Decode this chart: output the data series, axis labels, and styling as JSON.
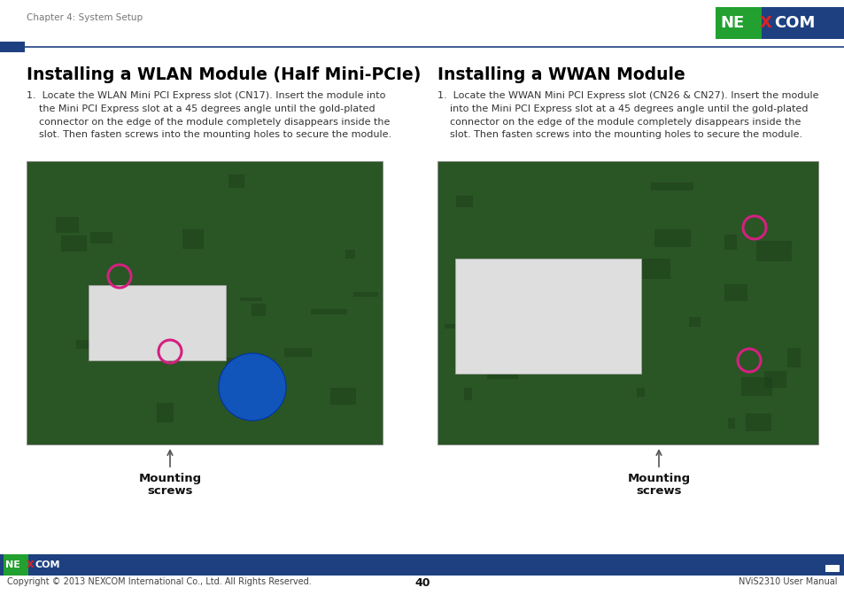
{
  "page_title": "Chapter 4: System Setup",
  "page_number": "40",
  "footer_copyright": "Copyright © 2013 NEXCOM International Co., Ltd. All Rights Reserved.",
  "footer_right": "NViS2310 User Manual",
  "section1_title": "Installing a WLAN Module (Half Mini-PCIe)",
  "section2_title": "Installing a WWAN Module",
  "section1_body": "1.  Locate the WLAN Mini PCI Express slot (CN17). Insert the module into\n    the Mini PCI Express slot at a 45 degrees angle until the gold-plated\n    connector on the edge of the module completely disappears inside the\n    slot. Then fasten screws into the mounting holes to secure the module.",
  "section2_body": "1.  Locate the WWAN Mini PCI Express slot (CN26 & CN27). Insert the module\n    into the Mini PCI Express slot at a 45 degrees angle until the gold-plated\n    connector on the edge of the module completely disappears inside the\n    slot. Then fasten screws into the mounting holes to secure the module.",
  "label1_line1": "Mounting",
  "label1_line2": "screws",
  "label2_line1": "Mounting",
  "label2_line2": "screws",
  "bg_color": "#ffffff",
  "header_line_color": "#1e4080",
  "header_square_color": "#1e4080",
  "footer_bar_color": "#1e4080",
  "nexcom_green": "#22a030",
  "nexcom_blue": "#1e4080",
  "nexcom_x_color": "#dd2222",
  "title_fontsize": 13.5,
  "body_fontsize": 8.0,
  "header_fontsize": 7.5,
  "label_fontsize": 9.5,
  "footer_fontsize": 7.0,
  "page_num_fontsize": 9.0,
  "pcb_color": "#2a5525",
  "circle_color": "#d42080",
  "arrow_color": "#555555",
  "header_text_color": "#777777"
}
